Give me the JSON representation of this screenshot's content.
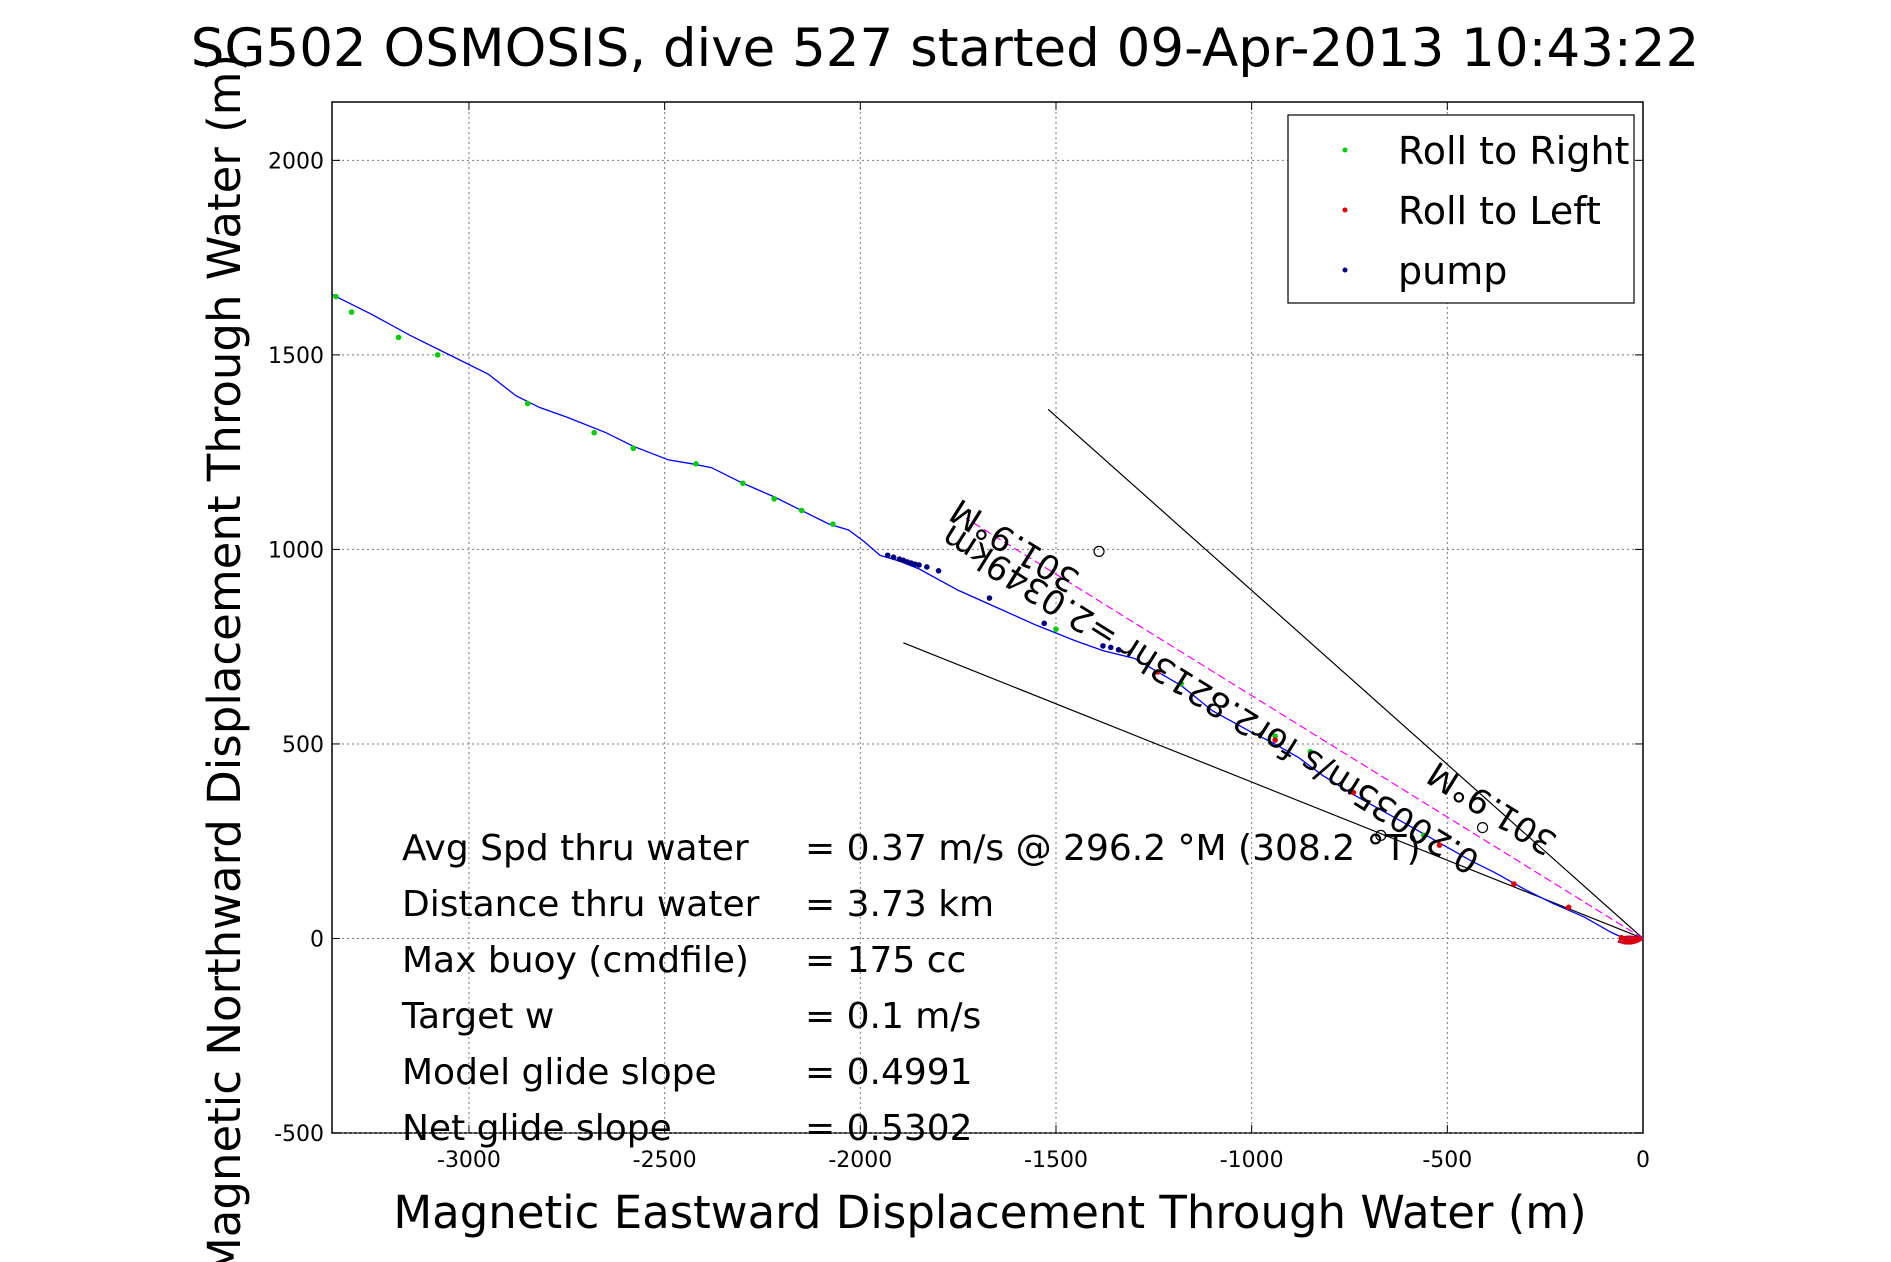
{
  "chart_data": {
    "type": "scatter",
    "title": "SG502 OSMOSIS, dive 527 started 09-Apr-2013 10:43:22",
    "xlabel": "Magnetic Eastward Displacement Through Water (m)",
    "ylabel": "Magnetic Northward Displacement Through Water (m)",
    "xlim": [
      -3350,
      0
    ],
    "ylim": [
      -500,
      2150
    ],
    "xticks": [
      -3000,
      -2500,
      -2000,
      -1500,
      -1000,
      -500,
      0
    ],
    "yticks": [
      -500,
      0,
      500,
      1000,
      1500,
      2000
    ],
    "grid": true,
    "legend_position": "top-right",
    "colors": {
      "track": "#0000ff",
      "roll_right": "#00cc00",
      "roll_left": "#dd0000",
      "pump": "#000080",
      "heading_line": "#ff00ff",
      "cone": "#000000",
      "surface_loop": "#cc0033"
    },
    "legend": [
      {
        "label": "Roll to Right",
        "color": "#00cc00"
      },
      {
        "label": "Roll to Left",
        "color": "#dd0000"
      },
      {
        "label": "pump",
        "color": "#000080"
      }
    ],
    "series": [
      {
        "name": "track",
        "x": [
          -3350,
          -3300,
          -3250,
          -3150,
          -3050,
          -2950,
          -2880,
          -2820,
          -2750,
          -2650,
          -2580,
          -2490,
          -2430,
          -2380,
          -2300,
          -2220,
          -2160,
          -2080,
          -2030,
          -1990,
          -1950,
          -1900,
          -1850,
          -1750,
          -1650,
          -1550,
          -1450,
          -1380,
          -1300,
          -1240,
          -1180,
          -1100,
          -1000,
          -950,
          -880,
          -820,
          -740,
          -660,
          -580,
          -510,
          -440,
          -380,
          -300,
          -230,
          -150,
          -80,
          -40,
          -10,
          0
        ],
        "y": [
          1655,
          1630,
          1605,
          1550,
          1500,
          1450,
          1395,
          1365,
          1340,
          1300,
          1265,
          1230,
          1220,
          1210,
          1170,
          1135,
          1105,
          1065,
          1050,
          1020,
          985,
          970,
          950,
          895,
          850,
          805,
          765,
          740,
          720,
          685,
          650,
          585,
          530,
          505,
          465,
          420,
          370,
          325,
          280,
          240,
          200,
          170,
          125,
          90,
          55,
          15,
          -3,
          0,
          0
        ]
      },
      {
        "name": "Roll to Right",
        "x": [
          -3340,
          -3300,
          -3180,
          -3080,
          -2850,
          -2680,
          -2580,
          -2420,
          -2300,
          -2220,
          -2150,
          -2070,
          -1500,
          -1180,
          -940,
          -850,
          -560
        ],
        "y": [
          1650,
          1610,
          1545,
          1500,
          1375,
          1300,
          1260,
          1220,
          1170,
          1130,
          1100,
          1065,
          795,
          655,
          520,
          480,
          265
        ]
      },
      {
        "name": "Roll to Left",
        "x": [
          -1240,
          -940,
          -740,
          -520,
          -330,
          -190,
          -55,
          -45,
          -35,
          -25,
          -15
        ],
        "y": [
          685,
          510,
          375,
          240,
          140,
          80,
          2,
          -5,
          -8,
          -6,
          -2
        ]
      },
      {
        "name": "pump",
        "x": [
          -1930,
          -1915,
          -1900,
          -1890,
          -1880,
          -1870,
          -1860,
          -1850,
          -1830,
          -1800,
          -1670,
          -1530,
          -1380,
          -1360,
          -1340
        ],
        "y": [
          985,
          980,
          975,
          972,
          968,
          965,
          962,
          960,
          955,
          945,
          875,
          810,
          752,
          748,
          742
        ]
      }
    ],
    "heading_line": {
      "x": [
        0,
        -1730
      ],
      "y": [
        0,
        1080
      ]
    },
    "cone_lines": [
      {
        "x": [
          0,
          -1520
        ],
        "y": [
          0,
          1360
        ]
      },
      {
        "x": [
          0,
          -1890
        ],
        "y": [
          0,
          760
        ]
      }
    ],
    "circle_markers": [
      {
        "x": -1390,
        "y": 995
      },
      {
        "x": -670,
        "y": 265
      },
      {
        "x": -410,
        "y": 285
      }
    ],
    "rotated_labels": [
      {
        "text": "301.9°M",
        "x": -1590,
        "y": 1035,
        "angle_deg": 32
      },
      {
        "text": "301.9°M",
        "x": -370,
        "y": 360,
        "angle_deg": 32
      },
      {
        "text": "0.20035m/s for2.8213hr =2.0349km",
        "x": -1090,
        "y": 640,
        "angle_deg": 32
      }
    ],
    "annotation": {
      "rows": [
        {
          "label": "Avg Spd thru water",
          "value": "=  0.37 m/s @ 296.2 °M (308.2 °T)"
        },
        {
          "label": "Distance thru water",
          "value": "=  3.73 km"
        },
        {
          "label": "Max buoy (cmdfile)",
          "value": "= 175 cc"
        },
        {
          "label": "Target w",
          "value": "= 0.1 m/s"
        },
        {
          "label": "Model glide slope",
          "value": "= 0.4991"
        },
        {
          "label": "Net glide slope",
          "value": "= 0.5302"
        }
      ]
    }
  }
}
